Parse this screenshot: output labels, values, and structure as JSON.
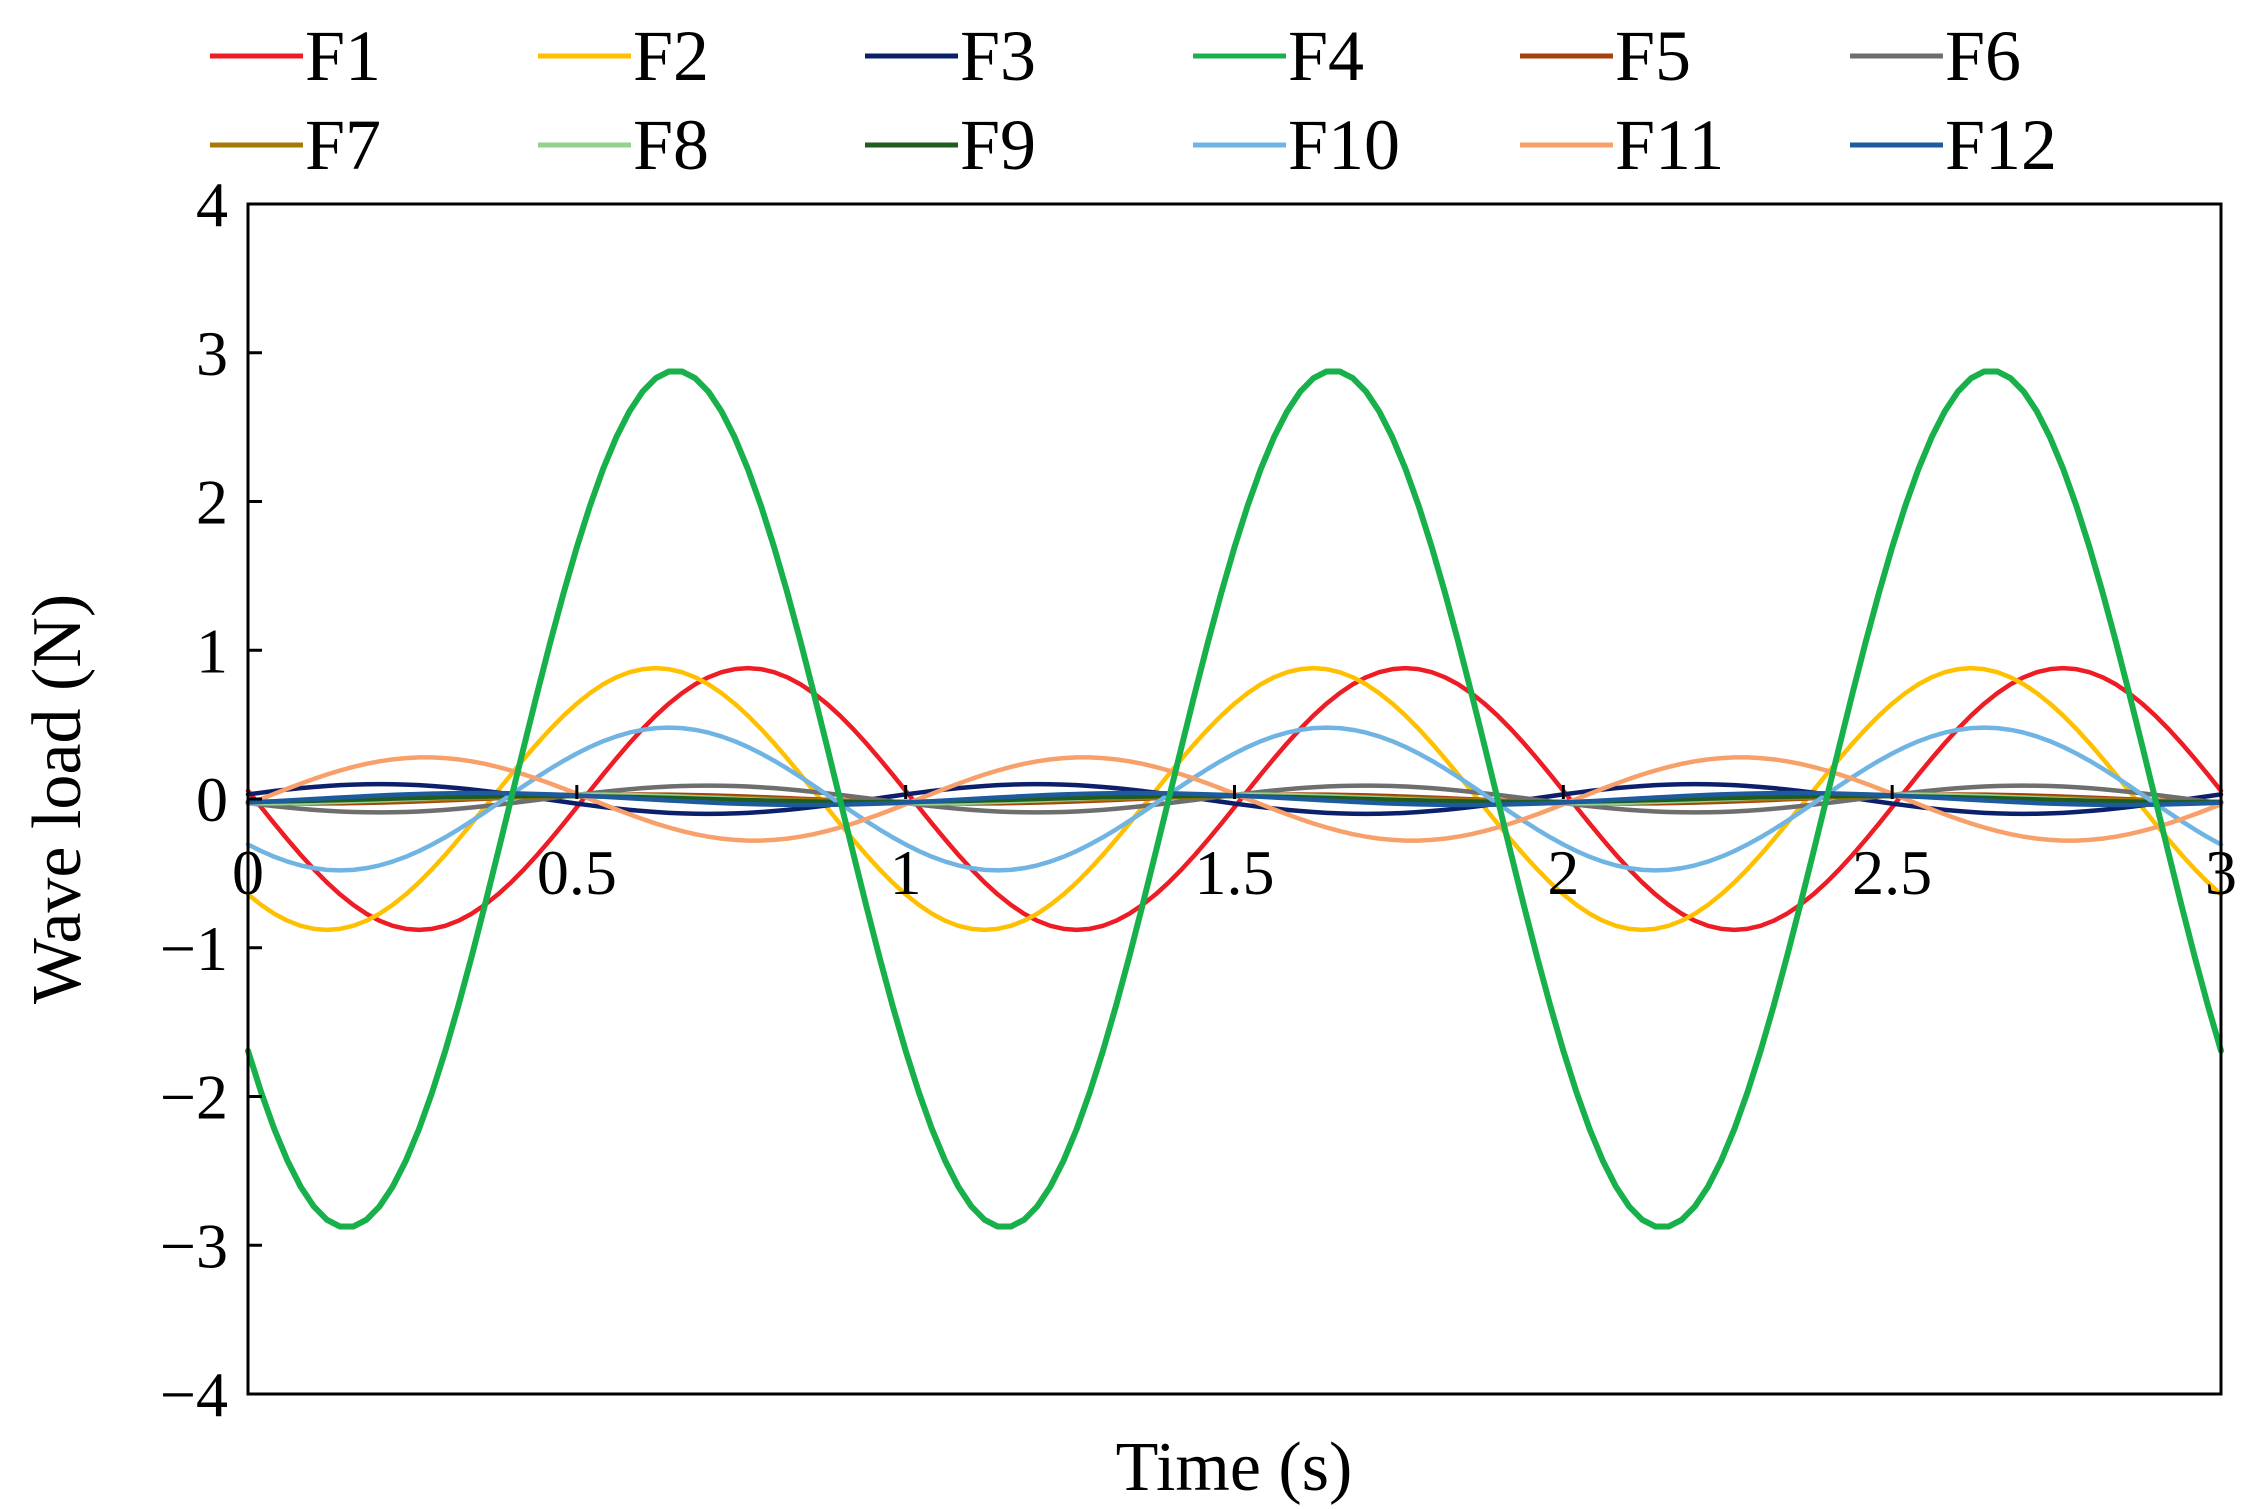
{
  "chart_data": {
    "type": "line",
    "xlabel": "Time (s)",
    "ylabel": "Wave load (N)",
    "xlim": [
      0,
      3
    ],
    "ylim": [
      -4,
      4
    ],
    "x_ticks": [
      "0",
      "0.5",
      "1",
      "1.5",
      "2",
      "2.5",
      "3"
    ],
    "y_ticks": [
      "4",
      "3",
      "2",
      "1",
      "0",
      "−1",
      "−2",
      "−3",
      "−4"
    ],
    "grid": false,
    "legend_position": "top",
    "sample_step": 0.02,
    "series": [
      {
        "name": "F1",
        "color": "#ee1c25",
        "amplitude": 0.88,
        "period": 1.0,
        "peak_time": 0.76
      },
      {
        "name": "F2",
        "color": "#ffc000",
        "amplitude": 0.88,
        "period": 1.0,
        "peak_time": 0.62
      },
      {
        "name": "F3",
        "color": "#0c1f6b",
        "amplitude": 0.1,
        "period": 1.0,
        "peak_time": 0.2
      },
      {
        "name": "F4",
        "color": "#18b04a",
        "amplitude": 2.88,
        "period": 1.0,
        "peak_time": 0.65
      },
      {
        "name": "F5",
        "color": "#a5420f",
        "amplitude": 0.03,
        "period": 1.0,
        "peak_time": 0.6
      },
      {
        "name": "F6",
        "color": "#6e6e6e",
        "amplitude": 0.09,
        "period": 1.0,
        "peak_time": 0.7
      },
      {
        "name": "F7",
        "color": "#a6780a",
        "amplitude": 0.02,
        "period": 1.0,
        "peak_time": 0.55
      },
      {
        "name": "F8",
        "color": "#92d18e",
        "amplitude": 0.03,
        "period": 1.0,
        "peak_time": 0.5
      },
      {
        "name": "F9",
        "color": "#1f5c1f",
        "amplitude": 0.02,
        "period": 1.0,
        "peak_time": 0.45
      },
      {
        "name": "F10",
        "color": "#6fb4e3",
        "amplitude": 0.48,
        "period": 1.0,
        "peak_time": 0.64
      },
      {
        "name": "F11",
        "color": "#f8a06a",
        "amplitude": 0.28,
        "period": 1.0,
        "peak_time": 0.27
      },
      {
        "name": "F12",
        "color": "#1d5b9e",
        "amplitude": 0.04,
        "period": 1.0,
        "peak_time": 0.35
      }
    ]
  }
}
